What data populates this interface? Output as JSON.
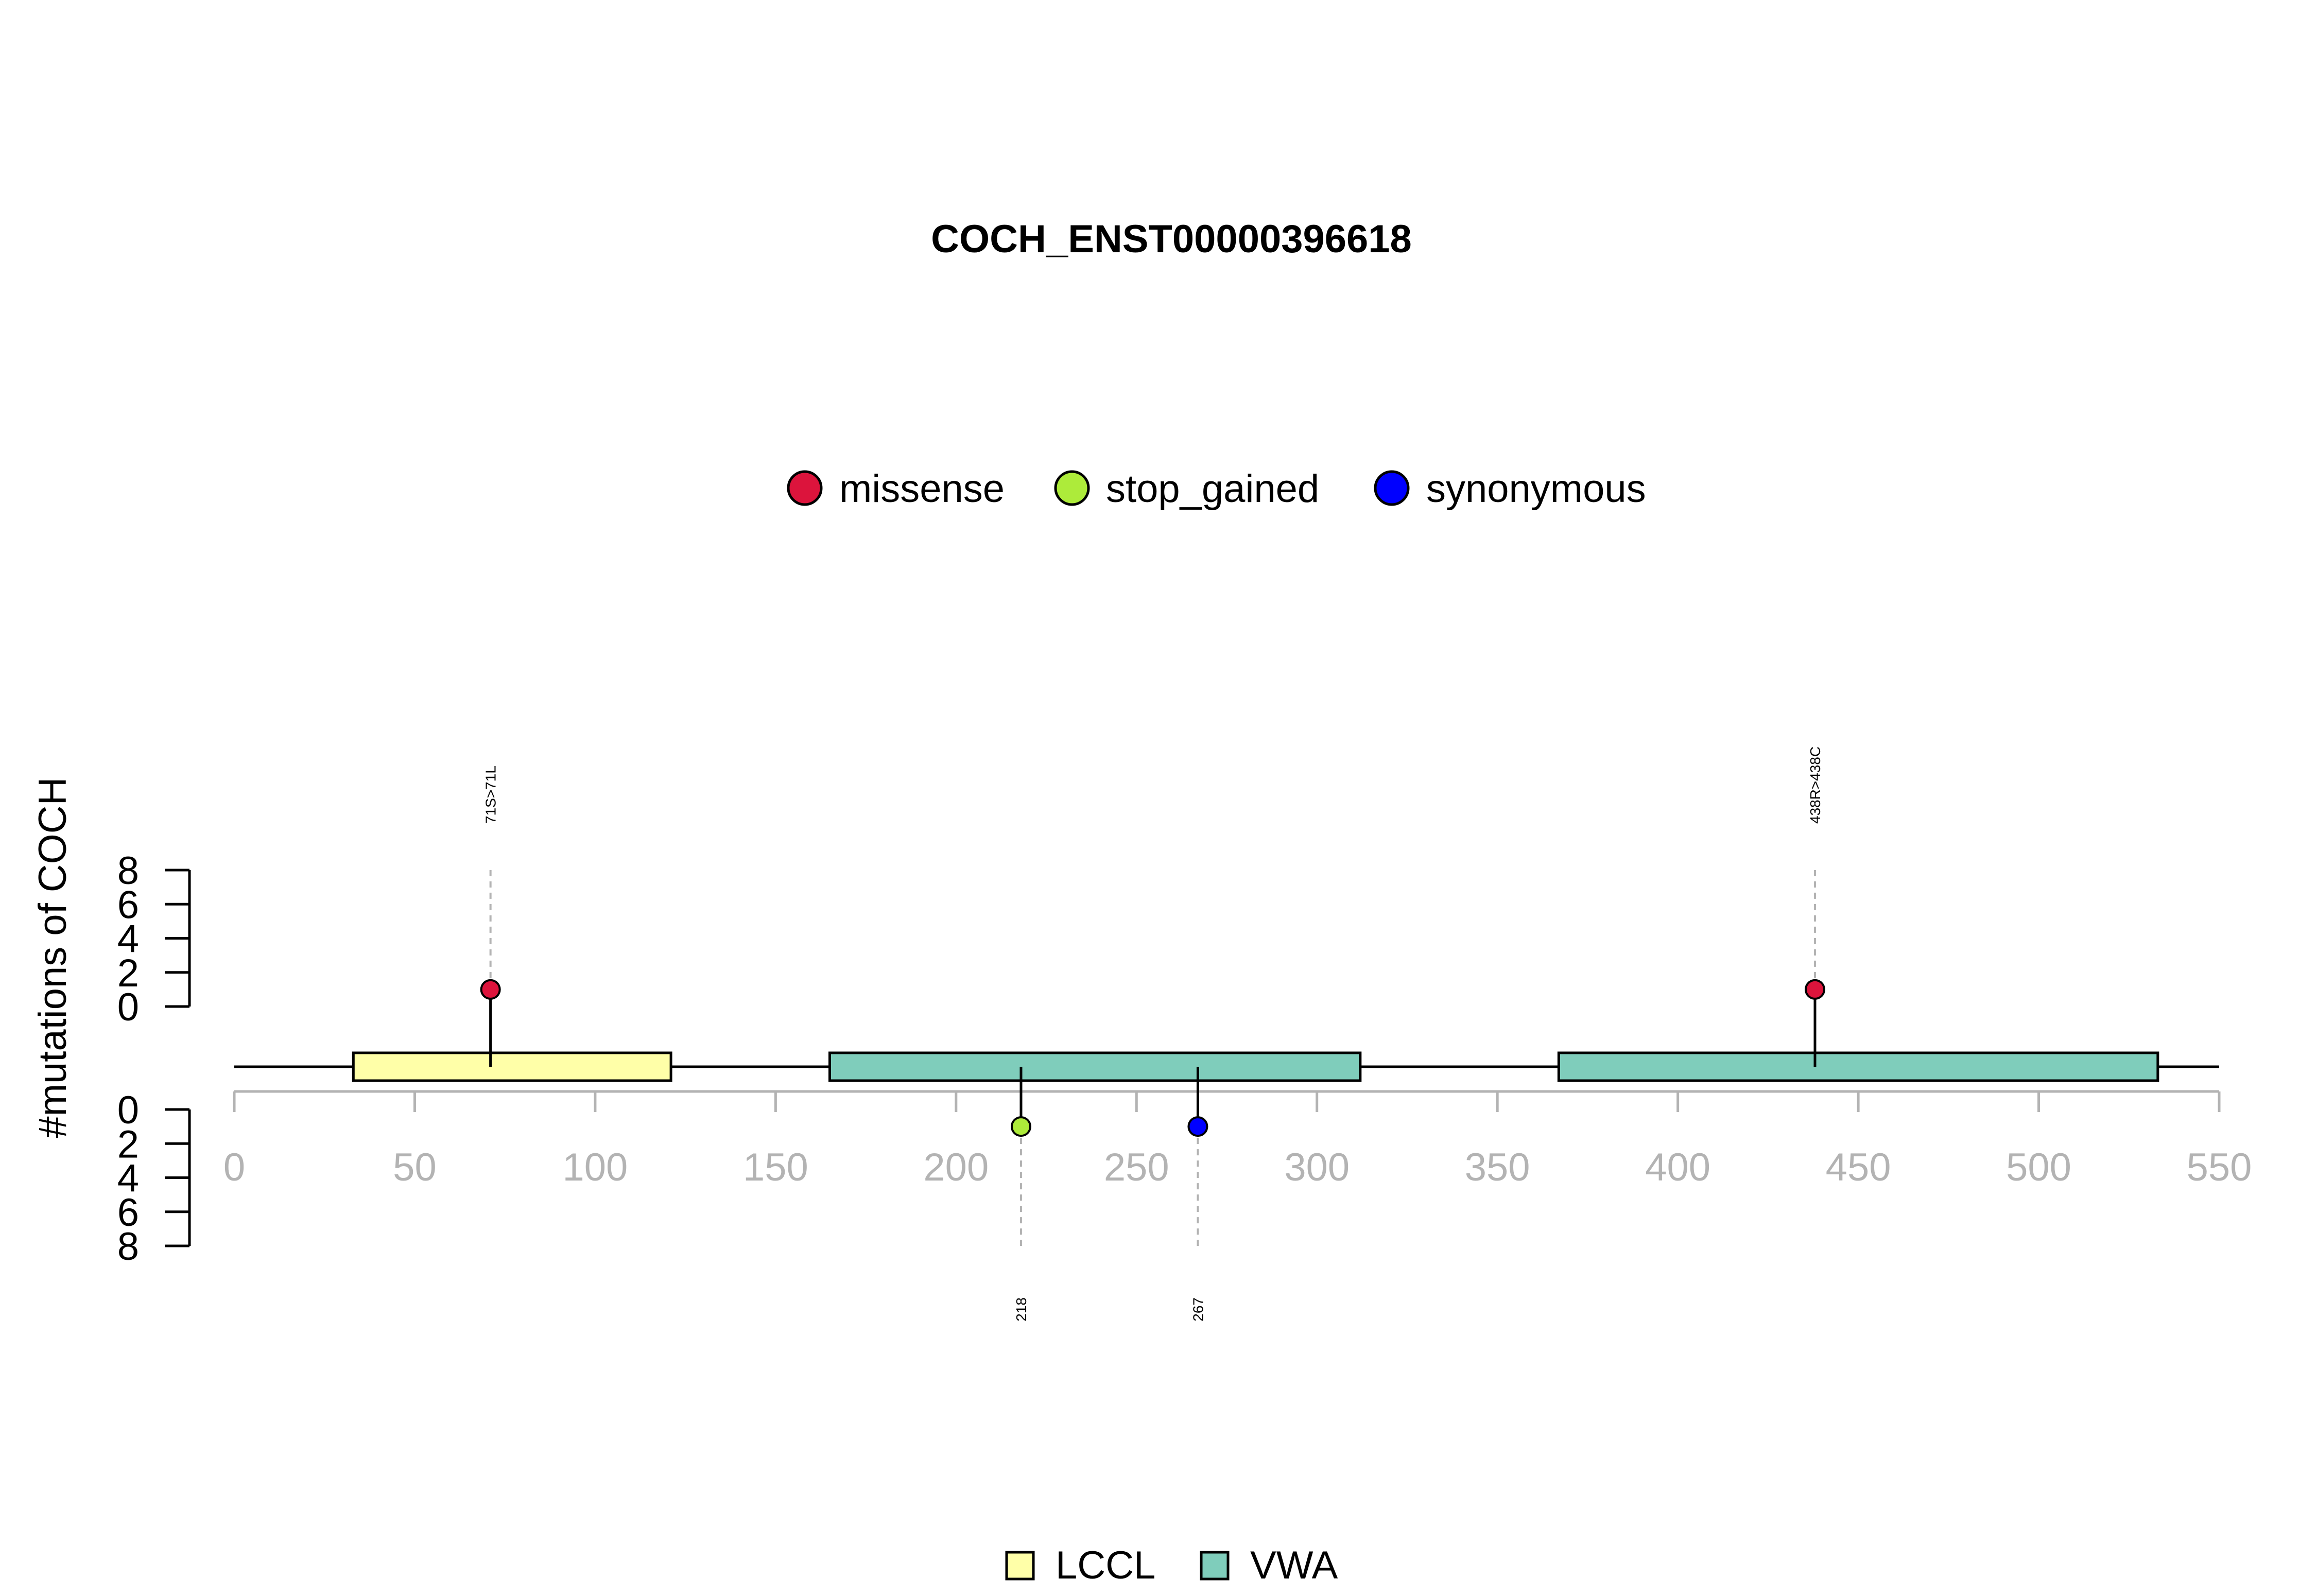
{
  "chart_data": {
    "type": "lollipop",
    "title": "COCH_ENST00000396618",
    "ylabel": "#mutations of COCH",
    "xlim": [
      0,
      550
    ],
    "x_ticks": [
      0,
      50,
      100,
      150,
      200,
      250,
      300,
      350,
      400,
      450,
      500,
      550
    ],
    "y_ticks": [
      0,
      2,
      4,
      6,
      8
    ],
    "ylim": [
      0,
      8
    ],
    "mutation_legend": [
      {
        "label": "missense",
        "color": "#DC143C"
      },
      {
        "label": "stop_gained",
        "color": "#ADEB3A"
      },
      {
        "label": "synonymous",
        "color": "#0000FF"
      }
    ],
    "domains": [
      {
        "name": "VWA",
        "start": 165,
        "end": 312,
        "color": "#7FCDBB"
      },
      {
        "name": "LCCL",
        "start": 33,
        "end": 121,
        "color": "#FFFFA8"
      },
      {
        "name": "VWA",
        "start": 367,
        "end": 533,
        "color": "#7FCDBB"
      }
    ],
    "domain_legend": [
      {
        "label": "LCCL",
        "color": "#FFFFA8"
      },
      {
        "label": "VWA",
        "color": "#7FCDBB"
      }
    ],
    "mutations": [
      {
        "position": 71,
        "count": 1,
        "type": "missense",
        "label": "71S>71L",
        "side": "top"
      },
      {
        "position": 438,
        "count": 1,
        "type": "missense",
        "label": "438R>438C",
        "side": "top"
      },
      {
        "position": 218,
        "count": 1,
        "type": "stop_gained",
        "label": "218",
        "side": "bottom"
      },
      {
        "position": 267,
        "count": 1,
        "type": "synonymous",
        "label": "267",
        "side": "bottom"
      }
    ],
    "protein_length": 550
  }
}
